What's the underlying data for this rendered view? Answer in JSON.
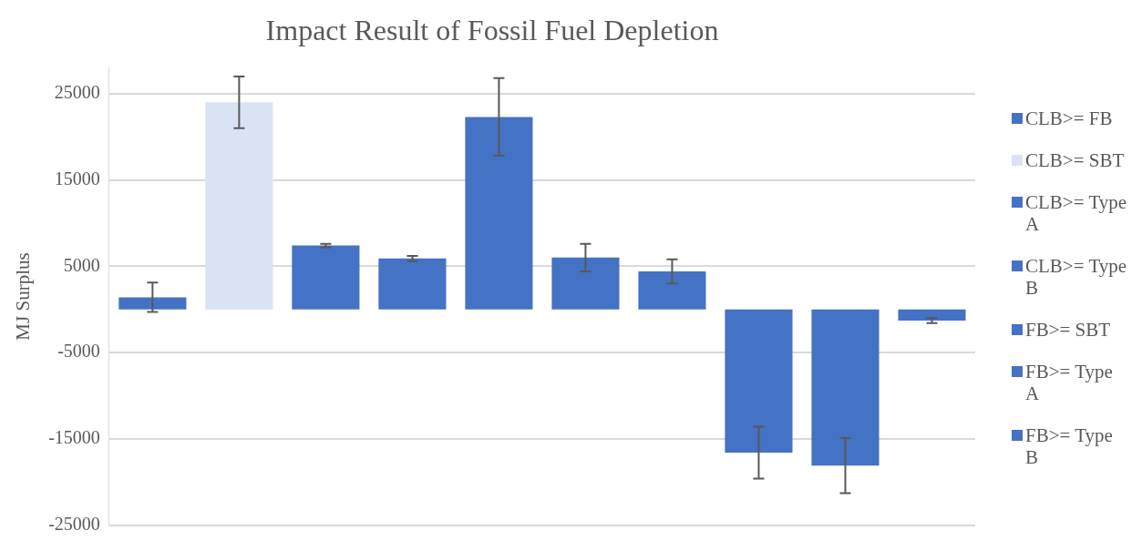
{
  "chart_data": {
    "type": "bar",
    "title": "Impact Result of Fossil Fuel Depletion",
    "ylabel": "MJ Surplus",
    "categories": [
      null,
      null,
      null,
      null,
      null,
      null,
      null,
      null,
      null,
      null
    ],
    "series": [
      {
        "name": "CLB>= FB",
        "color": "#4472c4",
        "values": [
          1400,
          null,
          null,
          null,
          null,
          null,
          null,
          null,
          null,
          null
        ],
        "errors": [
          1700,
          null,
          null,
          null,
          null,
          null,
          null,
          null,
          null,
          null
        ]
      },
      {
        "name": "CLB>= SBT",
        "color": "#dae3f3",
        "values": [
          null,
          24000,
          null,
          null,
          null,
          null,
          null,
          null,
          null,
          null
        ],
        "errors": [
          null,
          3000,
          null,
          null,
          null,
          null,
          null,
          null,
          null,
          null
        ]
      },
      {
        "name": "CLB>= Type A",
        "color": "#4472c4",
        "values": [
          null,
          null,
          7400,
          null,
          null,
          null,
          null,
          null,
          null,
          null
        ],
        "errors": [
          null,
          null,
          200,
          null,
          null,
          null,
          null,
          null,
          null,
          null
        ]
      },
      {
        "name": "CLB>= Type B",
        "color": "#4472c4",
        "values": [
          null,
          null,
          null,
          5900,
          null,
          null,
          null,
          null,
          null,
          null
        ],
        "errors": [
          null,
          null,
          null,
          300,
          null,
          null,
          null,
          null,
          null,
          null
        ]
      },
      {
        "name": "FB>= SBT",
        "color": "#4472c4",
        "values": [
          null,
          null,
          null,
          null,
          22300,
          null,
          null,
          null,
          null,
          null
        ],
        "errors": [
          null,
          null,
          null,
          null,
          4500,
          null,
          null,
          null,
          null,
          null
        ]
      },
      {
        "name": "FB>= Type A",
        "color": "#4472c4",
        "values": [
          null,
          null,
          null,
          null,
          null,
          6000,
          null,
          null,
          null,
          null
        ],
        "errors": [
          null,
          null,
          null,
          null,
          null,
          1600,
          null,
          null,
          null,
          null
        ]
      },
      {
        "name": "FB>= Type B",
        "color": "#4472c4",
        "values": [
          null,
          null,
          null,
          null,
          null,
          null,
          4400,
          null,
          null,
          null
        ],
        "errors": [
          null,
          null,
          null,
          null,
          null,
          null,
          1400,
          null,
          null,
          null
        ]
      },
      {
        "color": "#4472c4",
        "values": [
          null,
          null,
          null,
          null,
          null,
          null,
          null,
          -16600,
          null,
          null
        ],
        "errors": [
          null,
          null,
          null,
          null,
          null,
          null,
          null,
          3000,
          null,
          null
        ]
      },
      {
        "color": "#4472c4",
        "values": [
          null,
          null,
          null,
          null,
          null,
          null,
          null,
          null,
          -18100,
          null
        ],
        "errors": [
          null,
          null,
          null,
          null,
          null,
          null,
          null,
          null,
          3200,
          null
        ]
      },
      {
        "color": "#4472c4",
        "values": [
          null,
          null,
          null,
          null,
          null,
          null,
          null,
          null,
          null,
          -1300
        ],
        "errors": [
          null,
          null,
          null,
          null,
          null,
          null,
          null,
          null,
          null,
          300
        ]
      }
    ],
    "ylim": [
      -25000,
      28000
    ],
    "yticks": [
      -25000,
      -15000,
      -5000,
      5000,
      15000,
      25000
    ],
    "grid": "y",
    "legend": "right"
  }
}
